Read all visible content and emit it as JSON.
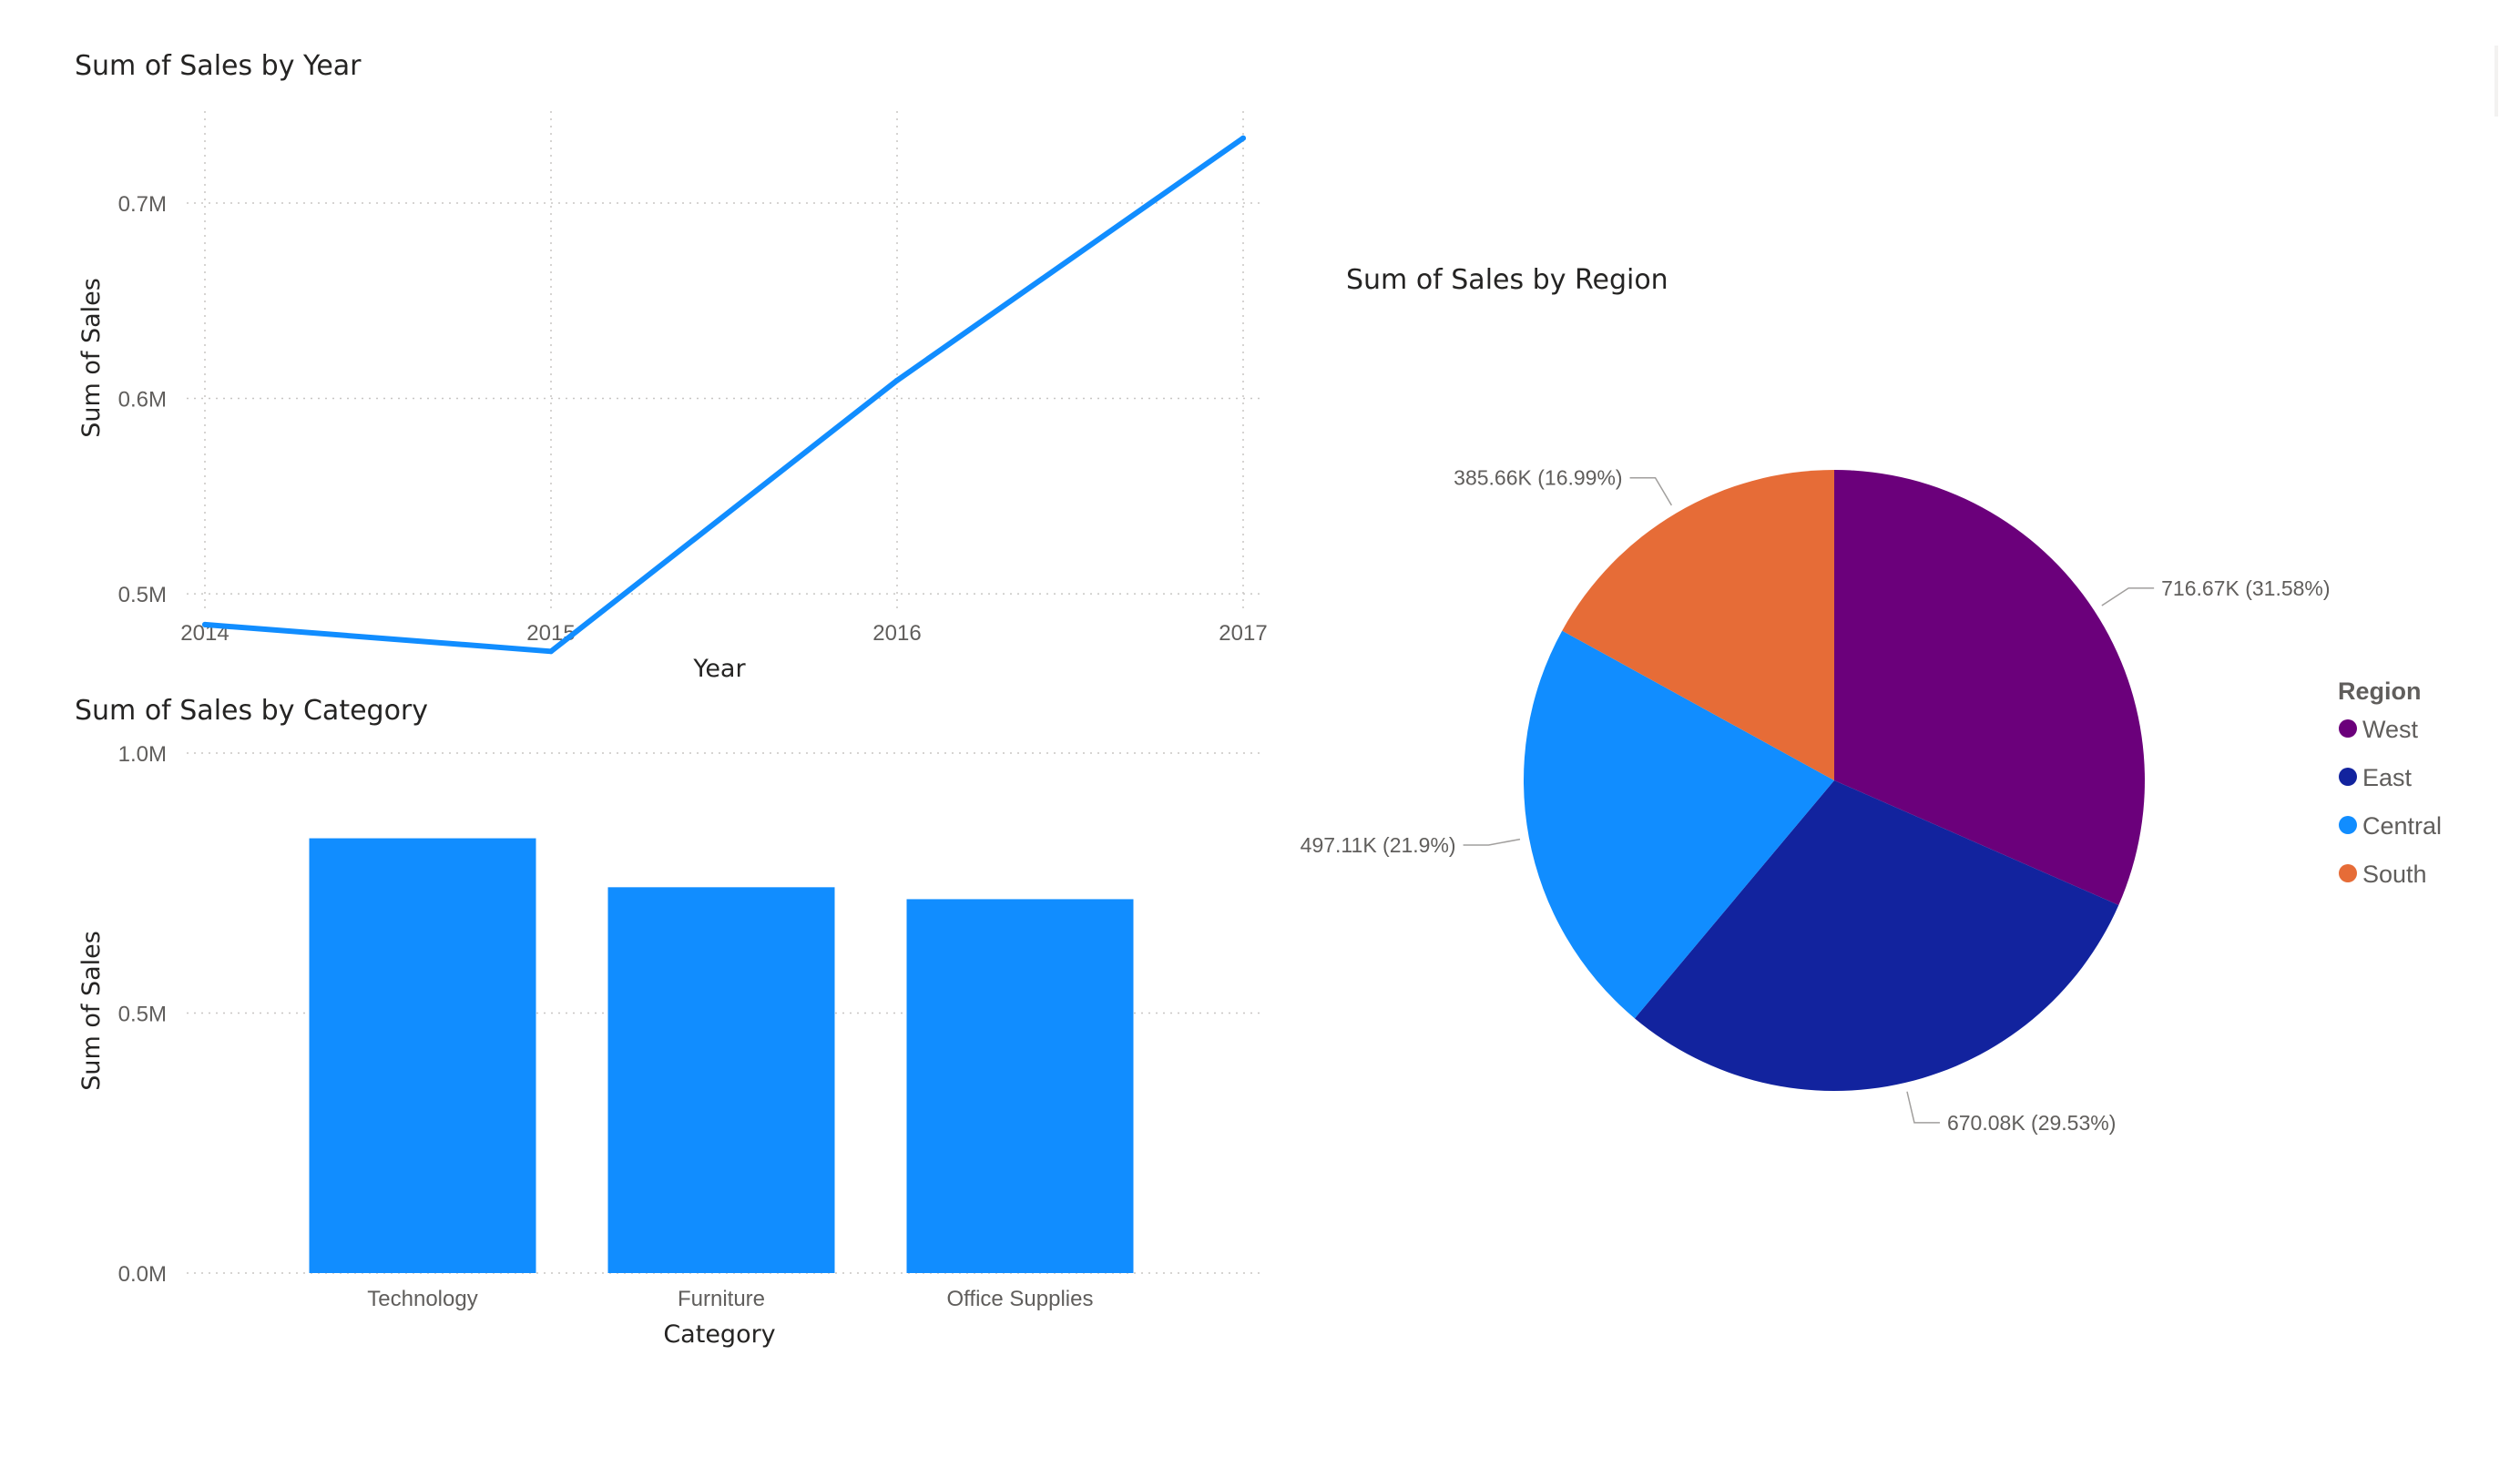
{
  "chart_data": [
    {
      "type": "line",
      "title": "Sum of Sales by Year",
      "xlabel": "Year",
      "ylabel": "Sum of Sales",
      "x": [
        "2014",
        "2015",
        "2016",
        "2017"
      ],
      "series": [
        {
          "values": [
            484247,
            470533,
            609206,
            733215
          ]
        }
      ],
      "yticks": [
        0.5,
        0.6,
        0.7
      ],
      "ytick_labels": [
        "0.5M",
        "0.6M",
        "0.7M"
      ],
      "ylim": [
        0.48,
        0.748
      ],
      "grid": true,
      "color": "#118DFF"
    },
    {
      "type": "bar",
      "title": "Sum of Sales by Category",
      "xlabel": "Category",
      "ylabel": "Sum of Sales",
      "categories": [
        "Technology",
        "Furniture",
        "Office Supplies"
      ],
      "values": [
        836154,
        741999,
        719047
      ],
      "yticks": [
        0,
        0.5,
        1.0
      ],
      "ytick_labels": [
        "0.0M",
        "0.5M",
        "1.0M"
      ],
      "ylim": [
        0,
        1.0
      ],
      "grid": true,
      "color": "#118DFF"
    },
    {
      "type": "pie",
      "title": "Sum of Sales by Region",
      "legend_title": "Region",
      "legend_position": "right",
      "slices": [
        {
          "name": "West",
          "value": 716.67,
          "label": "716.67K (31.58%)",
          "color": "#6B007B"
        },
        {
          "name": "East",
          "value": 670.08,
          "label": "670.08K (29.53%)",
          "color": "#12239E"
        },
        {
          "name": "Central",
          "value": 497.11,
          "label": "497.11K (21.9%)",
          "color": "#118DFF"
        },
        {
          "name": "South",
          "value": 385.66,
          "label": "385.66K (16.99%)",
          "color": "#E66C37"
        }
      ]
    }
  ]
}
